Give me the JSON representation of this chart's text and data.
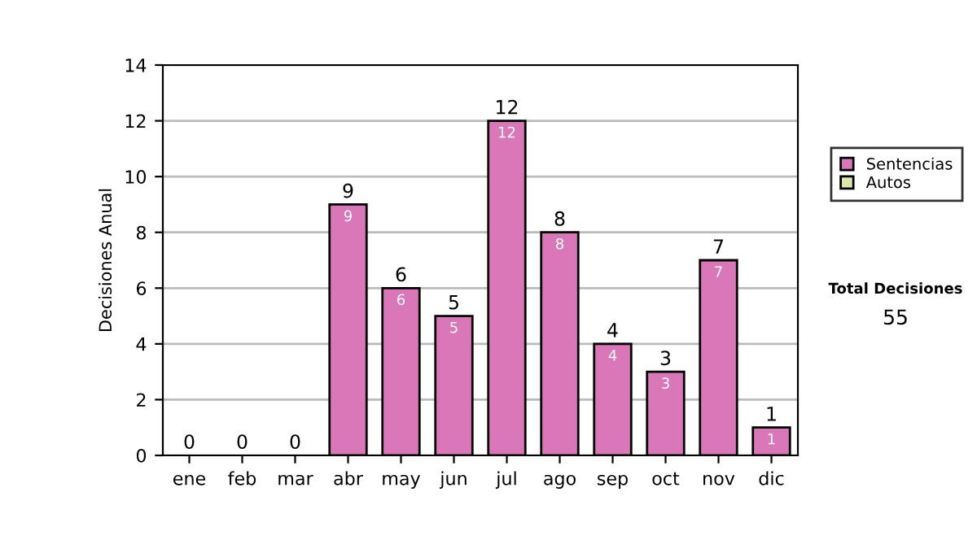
{
  "chart_data": {
    "type": "bar",
    "stacked": true,
    "ylabel": "Decisiones Anual",
    "categories": [
      "ene",
      "feb",
      "mar",
      "abr",
      "may",
      "jun",
      "jul",
      "ago",
      "sep",
      "oct",
      "nov",
      "dic"
    ],
    "series": [
      {
        "name": "Sentencias",
        "color": "#d977b9",
        "values": [
          0,
          0,
          0,
          9,
          6,
          5,
          12,
          8,
          4,
          3,
          7,
          1
        ],
        "value_labels": [
          null,
          null,
          null,
          "9",
          "6",
          "5",
          "12",
          "8",
          "4",
          "3",
          "7",
          "1"
        ]
      },
      {
        "name": "Autos",
        "color": "#d9eaa6",
        "values": [
          0,
          0,
          0,
          0,
          0,
          0,
          0,
          0,
          0,
          0,
          0,
          0
        ]
      }
    ],
    "totals": [
      "0",
      "0",
      "0",
      "9",
      "6",
      "5",
      "12",
      "8",
      "4",
      "3",
      "7",
      "1"
    ],
    "ylim": [
      0,
      14
    ],
    "yticks": [
      0,
      2,
      4,
      6,
      8,
      10,
      12,
      14
    ],
    "grid": "y",
    "legend": "right",
    "annotations": [
      "Total Decisiones",
      "55"
    ]
  }
}
